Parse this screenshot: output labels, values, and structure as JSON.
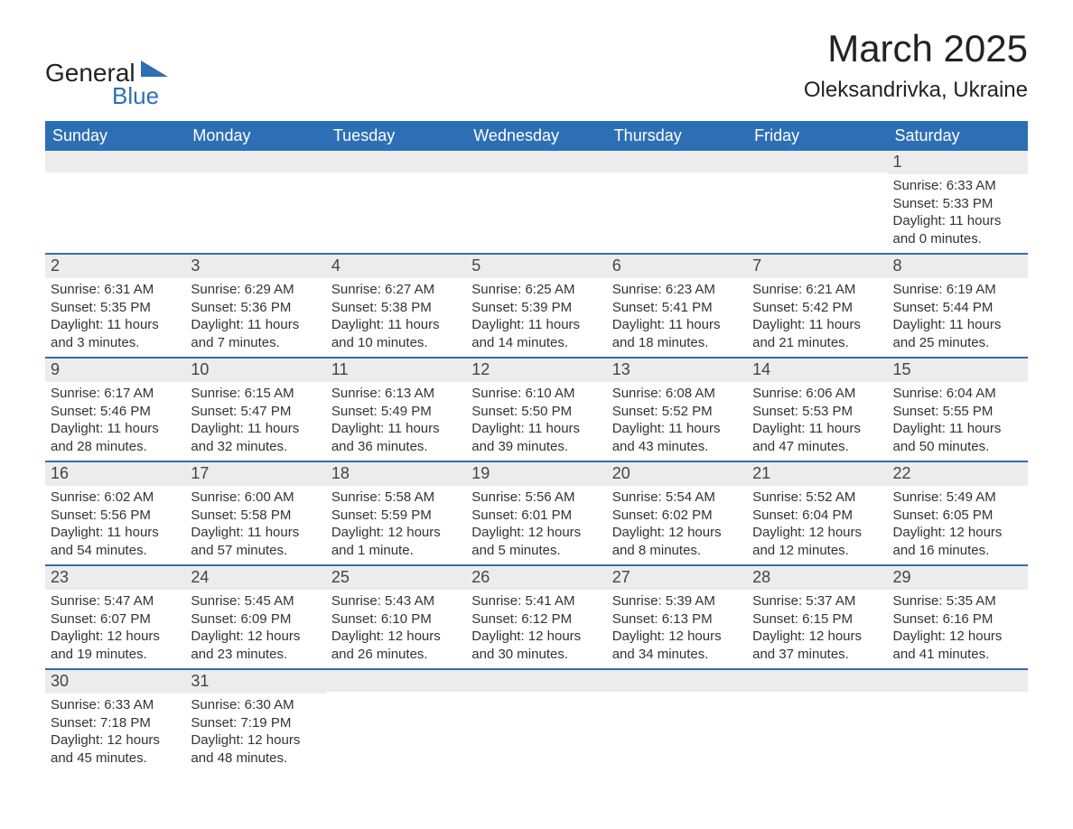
{
  "brand": {
    "word1": "General",
    "word2": "Blue",
    "logo_color": "#2d6fb5",
    "text_color": "#222222"
  },
  "header": {
    "title": "March 2025",
    "location": "Oleksandrivka, Ukraine",
    "title_fontsize": 42,
    "location_fontsize": 24
  },
  "calendar": {
    "type": "table",
    "header_bg": "#2d6fb5",
    "header_text_color": "#ffffff",
    "row_separator_color": "#2d6fb5",
    "daynum_bg": "#ececec",
    "body_bg": "#ffffff",
    "text_color": "#333333",
    "days_of_week": [
      "Sunday",
      "Monday",
      "Tuesday",
      "Wednesday",
      "Thursday",
      "Friday",
      "Saturday"
    ],
    "weeks": [
      [
        {
          "day": "",
          "sunrise": "",
          "sunset": "",
          "daylight": ""
        },
        {
          "day": "",
          "sunrise": "",
          "sunset": "",
          "daylight": ""
        },
        {
          "day": "",
          "sunrise": "",
          "sunset": "",
          "daylight": ""
        },
        {
          "day": "",
          "sunrise": "",
          "sunset": "",
          "daylight": ""
        },
        {
          "day": "",
          "sunrise": "",
          "sunset": "",
          "daylight": ""
        },
        {
          "day": "",
          "sunrise": "",
          "sunset": "",
          "daylight": ""
        },
        {
          "day": "1",
          "sunrise": "Sunrise: 6:33 AM",
          "sunset": "Sunset: 5:33 PM",
          "daylight": "Daylight: 11 hours and 0 minutes."
        }
      ],
      [
        {
          "day": "2",
          "sunrise": "Sunrise: 6:31 AM",
          "sunset": "Sunset: 5:35 PM",
          "daylight": "Daylight: 11 hours and 3 minutes."
        },
        {
          "day": "3",
          "sunrise": "Sunrise: 6:29 AM",
          "sunset": "Sunset: 5:36 PM",
          "daylight": "Daylight: 11 hours and 7 minutes."
        },
        {
          "day": "4",
          "sunrise": "Sunrise: 6:27 AM",
          "sunset": "Sunset: 5:38 PM",
          "daylight": "Daylight: 11 hours and 10 minutes."
        },
        {
          "day": "5",
          "sunrise": "Sunrise: 6:25 AM",
          "sunset": "Sunset: 5:39 PM",
          "daylight": "Daylight: 11 hours and 14 minutes."
        },
        {
          "day": "6",
          "sunrise": "Sunrise: 6:23 AM",
          "sunset": "Sunset: 5:41 PM",
          "daylight": "Daylight: 11 hours and 18 minutes."
        },
        {
          "day": "7",
          "sunrise": "Sunrise: 6:21 AM",
          "sunset": "Sunset: 5:42 PM",
          "daylight": "Daylight: 11 hours and 21 minutes."
        },
        {
          "day": "8",
          "sunrise": "Sunrise: 6:19 AM",
          "sunset": "Sunset: 5:44 PM",
          "daylight": "Daylight: 11 hours and 25 minutes."
        }
      ],
      [
        {
          "day": "9",
          "sunrise": "Sunrise: 6:17 AM",
          "sunset": "Sunset: 5:46 PM",
          "daylight": "Daylight: 11 hours and 28 minutes."
        },
        {
          "day": "10",
          "sunrise": "Sunrise: 6:15 AM",
          "sunset": "Sunset: 5:47 PM",
          "daylight": "Daylight: 11 hours and 32 minutes."
        },
        {
          "day": "11",
          "sunrise": "Sunrise: 6:13 AM",
          "sunset": "Sunset: 5:49 PM",
          "daylight": "Daylight: 11 hours and 36 minutes."
        },
        {
          "day": "12",
          "sunrise": "Sunrise: 6:10 AM",
          "sunset": "Sunset: 5:50 PM",
          "daylight": "Daylight: 11 hours and 39 minutes."
        },
        {
          "day": "13",
          "sunrise": "Sunrise: 6:08 AM",
          "sunset": "Sunset: 5:52 PM",
          "daylight": "Daylight: 11 hours and 43 minutes."
        },
        {
          "day": "14",
          "sunrise": "Sunrise: 6:06 AM",
          "sunset": "Sunset: 5:53 PM",
          "daylight": "Daylight: 11 hours and 47 minutes."
        },
        {
          "day": "15",
          "sunrise": "Sunrise: 6:04 AM",
          "sunset": "Sunset: 5:55 PM",
          "daylight": "Daylight: 11 hours and 50 minutes."
        }
      ],
      [
        {
          "day": "16",
          "sunrise": "Sunrise: 6:02 AM",
          "sunset": "Sunset: 5:56 PM",
          "daylight": "Daylight: 11 hours and 54 minutes."
        },
        {
          "day": "17",
          "sunrise": "Sunrise: 6:00 AM",
          "sunset": "Sunset: 5:58 PM",
          "daylight": "Daylight: 11 hours and 57 minutes."
        },
        {
          "day": "18",
          "sunrise": "Sunrise: 5:58 AM",
          "sunset": "Sunset: 5:59 PM",
          "daylight": "Daylight: 12 hours and 1 minute."
        },
        {
          "day": "19",
          "sunrise": "Sunrise: 5:56 AM",
          "sunset": "Sunset: 6:01 PM",
          "daylight": "Daylight: 12 hours and 5 minutes."
        },
        {
          "day": "20",
          "sunrise": "Sunrise: 5:54 AM",
          "sunset": "Sunset: 6:02 PM",
          "daylight": "Daylight: 12 hours and 8 minutes."
        },
        {
          "day": "21",
          "sunrise": "Sunrise: 5:52 AM",
          "sunset": "Sunset: 6:04 PM",
          "daylight": "Daylight: 12 hours and 12 minutes."
        },
        {
          "day": "22",
          "sunrise": "Sunrise: 5:49 AM",
          "sunset": "Sunset: 6:05 PM",
          "daylight": "Daylight: 12 hours and 16 minutes."
        }
      ],
      [
        {
          "day": "23",
          "sunrise": "Sunrise: 5:47 AM",
          "sunset": "Sunset: 6:07 PM",
          "daylight": "Daylight: 12 hours and 19 minutes."
        },
        {
          "day": "24",
          "sunrise": "Sunrise: 5:45 AM",
          "sunset": "Sunset: 6:09 PM",
          "daylight": "Daylight: 12 hours and 23 minutes."
        },
        {
          "day": "25",
          "sunrise": "Sunrise: 5:43 AM",
          "sunset": "Sunset: 6:10 PM",
          "daylight": "Daylight: 12 hours and 26 minutes."
        },
        {
          "day": "26",
          "sunrise": "Sunrise: 5:41 AM",
          "sunset": "Sunset: 6:12 PM",
          "daylight": "Daylight: 12 hours and 30 minutes."
        },
        {
          "day": "27",
          "sunrise": "Sunrise: 5:39 AM",
          "sunset": "Sunset: 6:13 PM",
          "daylight": "Daylight: 12 hours and 34 minutes."
        },
        {
          "day": "28",
          "sunrise": "Sunrise: 5:37 AM",
          "sunset": "Sunset: 6:15 PM",
          "daylight": "Daylight: 12 hours and 37 minutes."
        },
        {
          "day": "29",
          "sunrise": "Sunrise: 5:35 AM",
          "sunset": "Sunset: 6:16 PM",
          "daylight": "Daylight: 12 hours and 41 minutes."
        }
      ],
      [
        {
          "day": "30",
          "sunrise": "Sunrise: 6:33 AM",
          "sunset": "Sunset: 7:18 PM",
          "daylight": "Daylight: 12 hours and 45 minutes."
        },
        {
          "day": "31",
          "sunrise": "Sunrise: 6:30 AM",
          "sunset": "Sunset: 7:19 PM",
          "daylight": "Daylight: 12 hours and 48 minutes."
        },
        {
          "day": "",
          "sunrise": "",
          "sunset": "",
          "daylight": ""
        },
        {
          "day": "",
          "sunrise": "",
          "sunset": "",
          "daylight": ""
        },
        {
          "day": "",
          "sunrise": "",
          "sunset": "",
          "daylight": ""
        },
        {
          "day": "",
          "sunrise": "",
          "sunset": "",
          "daylight": ""
        },
        {
          "day": "",
          "sunrise": "",
          "sunset": "",
          "daylight": ""
        }
      ]
    ]
  }
}
